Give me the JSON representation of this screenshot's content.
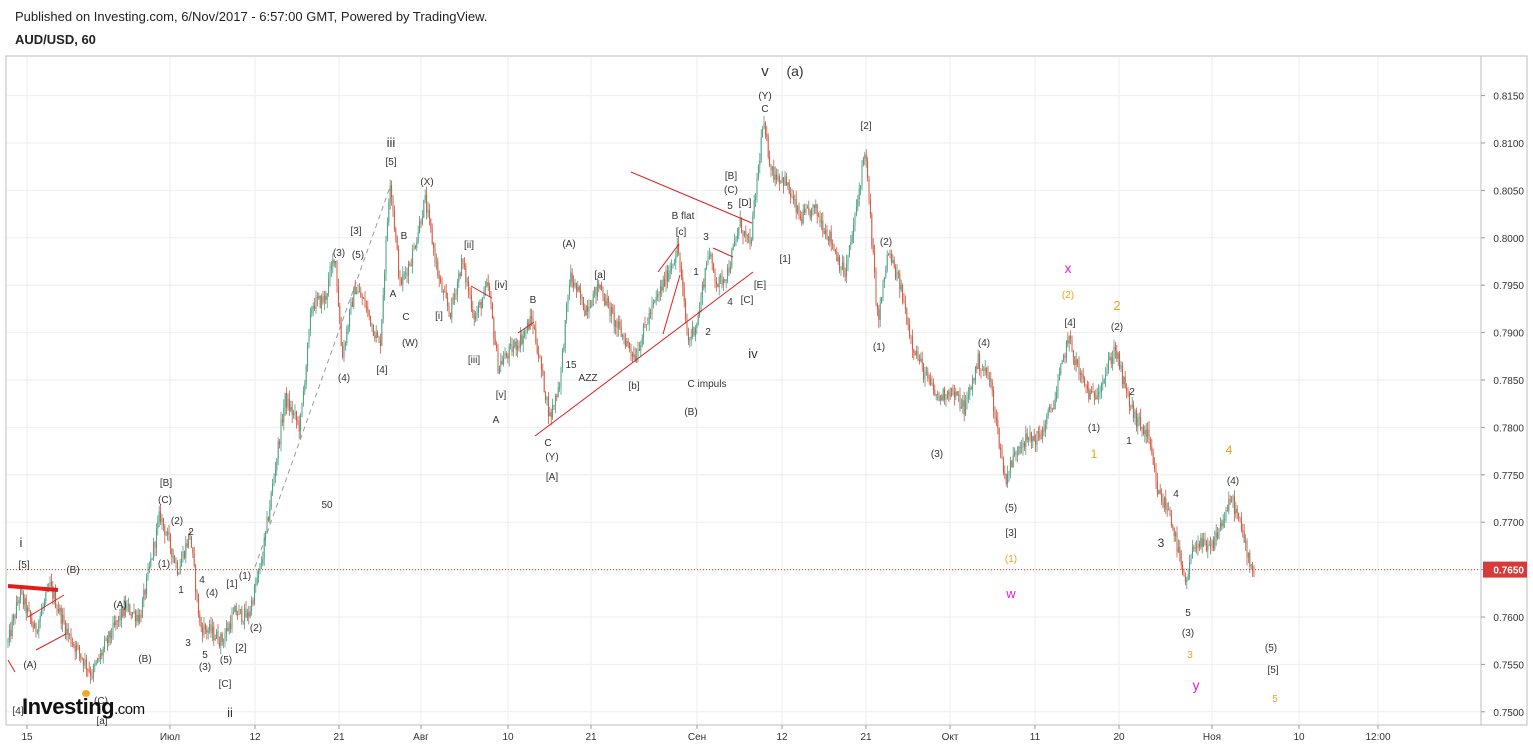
{
  "header": {
    "published": "Published on Investing.com, 6/Nov/2017 - 6:57:00 GMT, Powered by TradingView.",
    "symbol": "AUD/USD, 60"
  },
  "logo": {
    "brand": "Investing",
    "suffix": ".com"
  },
  "colors": {
    "up": "#4a9e83",
    "down": "#d0583f",
    "trendline": "#e31b1b",
    "dashed": "#9a9a9a",
    "current_price": "#d63a3a",
    "orange": "#f0a020",
    "magenta": "#e31be0",
    "grid": "#eeeeee"
  },
  "chart_data": {
    "type": "candlestick",
    "symbol": "AUD/USD",
    "interval": "60",
    "ylim": [
      0.7495,
      0.8195
    ],
    "y_ticks": [
      "0.8150",
      "0.8100",
      "0.8050",
      "0.8000",
      "0.7950",
      "0.7900",
      "0.7850",
      "0.7800",
      "0.7750",
      "0.7700",
      "0.7650",
      "0.7600",
      "0.7550",
      "0.7500"
    ],
    "x_ticks": [
      "15",
      "Июл",
      "12",
      "21",
      "Авг",
      "10",
      "21",
      "Сен",
      "12",
      "21",
      "Окт",
      "11",
      "20",
      "Ноя",
      "10",
      "12:00"
    ],
    "current_price": "0.7650",
    "price_path": [
      [
        0,
        0.7538
      ],
      [
        20,
        0.7625
      ],
      [
        35,
        0.7585
      ],
      [
        50,
        0.7632
      ],
      [
        68,
        0.7582
      ],
      [
        92,
        0.754
      ],
      [
        110,
        0.758
      ],
      [
        125,
        0.761
      ],
      [
        140,
        0.76
      ],
      [
        160,
        0.7708
      ],
      [
        178,
        0.765
      ],
      [
        190,
        0.7688
      ],
      [
        200,
        0.759
      ],
      [
        210,
        0.7585
      ],
      [
        222,
        0.7575
      ],
      [
        235,
        0.7605
      ],
      [
        248,
        0.76
      ],
      [
        262,
        0.766
      ],
      [
        285,
        0.783
      ],
      [
        300,
        0.78
      ],
      [
        312,
        0.793
      ],
      [
        325,
        0.7935
      ],
      [
        335,
        0.7985
      ],
      [
        342,
        0.7875
      ],
      [
        355,
        0.7948
      ],
      [
        365,
        0.793
      ],
      [
        380,
        0.7885
      ],
      [
        390,
        0.8065
      ],
      [
        400,
        0.795
      ],
      [
        412,
        0.798
      ],
      [
        425,
        0.804
      ],
      [
        440,
        0.795
      ],
      [
        450,
        0.792
      ],
      [
        462,
        0.7975
      ],
      [
        475,
        0.7915
      ],
      [
        488,
        0.795
      ],
      [
        498,
        0.7865
      ],
      [
        510,
        0.788
      ],
      [
        522,
        0.7895
      ],
      [
        532,
        0.7915
      ],
      [
        550,
        0.781
      ],
      [
        560,
        0.785
      ],
      [
        570,
        0.796
      ],
      [
        585,
        0.7925
      ],
      [
        600,
        0.795
      ],
      [
        615,
        0.791
      ],
      [
        635,
        0.7875
      ],
      [
        650,
        0.792
      ],
      [
        665,
        0.7955
      ],
      [
        678,
        0.799
      ],
      [
        688,
        0.789
      ],
      [
        698,
        0.7915
      ],
      [
        708,
        0.7985
      ],
      [
        718,
        0.795
      ],
      [
        728,
        0.7965
      ],
      [
        740,
        0.8015
      ],
      [
        750,
        0.799
      ],
      [
        763,
        0.812
      ],
      [
        772,
        0.807
      ],
      [
        785,
        0.806
      ],
      [
        800,
        0.802
      ],
      [
        815,
        0.803
      ],
      [
        830,
        0.8
      ],
      [
        845,
        0.796
      ],
      [
        855,
        0.802
      ],
      [
        865,
        0.8095
      ],
      [
        878,
        0.791
      ],
      [
        888,
        0.7985
      ],
      [
        900,
        0.795
      ],
      [
        912,
        0.789
      ],
      [
        925,
        0.7855
      ],
      [
        938,
        0.783
      ],
      [
        950,
        0.784
      ],
      [
        965,
        0.782
      ],
      [
        978,
        0.787
      ],
      [
        990,
        0.785
      ],
      [
        1005,
        0.7745
      ],
      [
        1020,
        0.7785
      ],
      [
        1040,
        0.779
      ],
      [
        1055,
        0.783
      ],
      [
        1068,
        0.7895
      ],
      [
        1080,
        0.7855
      ],
      [
        1092,
        0.783
      ],
      [
        1105,
        0.7855
      ],
      [
        1115,
        0.7885
      ],
      [
        1125,
        0.784
      ],
      [
        1135,
        0.781
      ],
      [
        1148,
        0.779
      ],
      [
        1158,
        0.773
      ],
      [
        1170,
        0.771
      ],
      [
        1180,
        0.766
      ],
      [
        1185,
        0.763
      ],
      [
        1195,
        0.768
      ],
      [
        1210,
        0.767
      ],
      [
        1222,
        0.77
      ],
      [
        1232,
        0.7725
      ],
      [
        1242,
        0.769
      ],
      [
        1252,
        0.765
      ]
    ],
    "annotations": [
      {
        "text": "v",
        "x": 765,
        "y": 76,
        "size": 15,
        "color": "#333"
      },
      {
        "text": "(a)",
        "x": 795,
        "y": 76,
        "size": 14,
        "color": "#333"
      },
      {
        "text": "(Y)",
        "x": 765,
        "y": 99
      },
      {
        "text": "C",
        "x": 765,
        "y": 112
      },
      {
        "text": "[2]",
        "x": 866,
        "y": 129
      },
      {
        "text": "[B]",
        "x": 731,
        "y": 179
      },
      {
        "text": "(C)",
        "x": 731,
        "y": 193
      },
      {
        "text": "5",
        "x": 730,
        "y": 209
      },
      {
        "text": "[D]",
        "x": 745,
        "y": 206
      },
      {
        "text": "iii",
        "x": 391,
        "y": 147,
        "size": 13
      },
      {
        "text": "[5]",
        "x": 391,
        "y": 165
      },
      {
        "text": "(X)",
        "x": 427,
        "y": 185
      },
      {
        "text": "[3]",
        "x": 356,
        "y": 234
      },
      {
        "text": "B",
        "x": 404,
        "y": 239
      },
      {
        "text": "[ii]",
        "x": 469,
        "y": 248
      },
      {
        "text": "(3)",
        "x": 339,
        "y": 256
      },
      {
        "text": "(5)",
        "x": 358,
        "y": 258
      },
      {
        "text": "(A)",
        "x": 569,
        "y": 247
      },
      {
        "text": "B flat",
        "x": 683,
        "y": 219
      },
      {
        "text": "[c]",
        "x": 681,
        "y": 235
      },
      {
        "text": "3",
        "x": 706,
        "y": 240
      },
      {
        "text": "(2)",
        "x": 886,
        "y": 245
      },
      {
        "text": "[1]",
        "x": 785,
        "y": 262
      },
      {
        "text": "1",
        "x": 696,
        "y": 275
      },
      {
        "text": "[a]",
        "x": 600,
        "y": 278
      },
      {
        "text": "[E]",
        "x": 760,
        "y": 288
      },
      {
        "text": "[iv]",
        "x": 501,
        "y": 288
      },
      {
        "text": "A",
        "x": 393,
        "y": 297
      },
      {
        "text": "B",
        "x": 533,
        "y": 303
      },
      {
        "text": "4",
        "x": 730,
        "y": 305
      },
      {
        "text": "[C]",
        "x": 747,
        "y": 303
      },
      {
        "text": "x",
        "x": 1068,
        "y": 273,
        "size": 14,
        "color": "#e31be0"
      },
      {
        "text": "(2)",
        "x": 1068,
        "y": 298,
        "color": "#f0a020"
      },
      {
        "text": "2",
        "x": 1117,
        "y": 310,
        "size": 13,
        "color": "#f0a020"
      },
      {
        "text": "[4]",
        "x": 1070,
        "y": 326
      },
      {
        "text": "(2)",
        "x": 1117,
        "y": 330
      },
      {
        "text": "C",
        "x": 406,
        "y": 320
      },
      {
        "text": "[i]",
        "x": 439,
        "y": 319
      },
      {
        "text": "2",
        "x": 708,
        "y": 335
      },
      {
        "text": "(W)",
        "x": 410,
        "y": 346
      },
      {
        "text": "(1)",
        "x": 879,
        "y": 350
      },
      {
        "text": "(4)",
        "x": 984,
        "y": 346
      },
      {
        "text": "iv",
        "x": 753,
        "y": 358,
        "size": 13
      },
      {
        "text": "[iii]",
        "x": 474,
        "y": 363
      },
      {
        "text": "15",
        "x": 571,
        "y": 368
      },
      {
        "text": "[4]",
        "x": 382,
        "y": 373
      },
      {
        "text": "(4)",
        "x": 344,
        "y": 381
      },
      {
        "text": "AZZ",
        "x": 588,
        "y": 381
      },
      {
        "text": "[b]",
        "x": 634,
        "y": 389
      },
      {
        "text": "C impuls",
        "x": 707,
        "y": 387
      },
      {
        "text": "2",
        "x": 1132,
        "y": 395
      },
      {
        "text": "[v]",
        "x": 501,
        "y": 398
      },
      {
        "text": "(B)",
        "x": 691,
        "y": 415
      },
      {
        "text": "A",
        "x": 496,
        "y": 423
      },
      {
        "text": "(1)",
        "x": 1094,
        "y": 431
      },
      {
        "text": "C",
        "x": 548,
        "y": 446
      },
      {
        "text": "1",
        "x": 1129,
        "y": 444
      },
      {
        "text": "(3)",
        "x": 937,
        "y": 457
      },
      {
        "text": "(Y)",
        "x": 552,
        "y": 460
      },
      {
        "text": "1",
        "x": 1094,
        "y": 458,
        "size": 12,
        "color": "#f0a020"
      },
      {
        "text": "4",
        "x": 1229,
        "y": 454,
        "size": 12,
        "color": "#f0a020"
      },
      {
        "text": "[A]",
        "x": 552,
        "y": 480
      },
      {
        "text": "(4)",
        "x": 1233,
        "y": 484
      },
      {
        "text": "[B]",
        "x": 166,
        "y": 486
      },
      {
        "text": "4",
        "x": 1176,
        "y": 497
      },
      {
        "text": "(C)",
        "x": 165,
        "y": 503
      },
      {
        "text": "50",
        "x": 327,
        "y": 508
      },
      {
        "text": "(5)",
        "x": 1011,
        "y": 511
      },
      {
        "text": "(2)",
        "x": 177,
        "y": 524
      },
      {
        "text": "2",
        "x": 191,
        "y": 535
      },
      {
        "text": "[3]",
        "x": 1011,
        "y": 536
      },
      {
        "text": "i",
        "x": 21,
        "y": 547,
        "size": 13
      },
      {
        "text": "3",
        "x": 1161,
        "y": 547,
        "size": 12
      },
      {
        "text": "(1)",
        "x": 164,
        "y": 567
      },
      {
        "text": "[5]",
        "x": 24,
        "y": 568
      },
      {
        "text": "(1)",
        "x": 1011,
        "y": 562,
        "color": "#f0a020"
      },
      {
        "text": "(B)",
        "x": 73,
        "y": 573
      },
      {
        "text": "4",
        "x": 202,
        "y": 583
      },
      {
        "text": "[1]",
        "x": 232,
        "y": 587
      },
      {
        "text": "1",
        "x": 181,
        "y": 593
      },
      {
        "text": "(4)",
        "x": 212,
        "y": 596
      },
      {
        "text": "(1)",
        "x": 245,
        "y": 579
      },
      {
        "text": "w",
        "x": 1011,
        "y": 598,
        "size": 13,
        "color": "#e31be0"
      },
      {
        "text": "(A)",
        "x": 120,
        "y": 608
      },
      {
        "text": "5",
        "x": 1188,
        "y": 616
      },
      {
        "text": "(2)",
        "x": 256,
        "y": 631
      },
      {
        "text": "(3)",
        "x": 1188,
        "y": 636
      },
      {
        "text": "3",
        "x": 188,
        "y": 646
      },
      {
        "text": "[2]",
        "x": 241,
        "y": 651
      },
      {
        "text": "(5)",
        "x": 1271,
        "y": 651
      },
      {
        "text": "5",
        "x": 205,
        "y": 658
      },
      {
        "text": "(B)",
        "x": 145,
        "y": 662
      },
      {
        "text": "3",
        "x": 1190,
        "y": 658,
        "color": "#f0a020"
      },
      {
        "text": "(A)",
        "x": 30,
        "y": 668
      },
      {
        "text": "(3)",
        "x": 205,
        "y": 670
      },
      {
        "text": "(5)",
        "x": 226,
        "y": 663
      },
      {
        "text": "[5]",
        "x": 1273,
        "y": 673
      },
      {
        "text": "[C]",
        "x": 225,
        "y": 687
      },
      {
        "text": "y",
        "x": 1196,
        "y": 690,
        "size": 14,
        "color": "#e31be0"
      },
      {
        "text": "5",
        "x": 1275,
        "y": 702,
        "color": "#f0a020"
      },
      {
        "text": "(C)",
        "x": 101,
        "y": 704
      },
      {
        "text": "ii",
        "x": 230,
        "y": 717,
        "size": 13
      },
      {
        "text": "[4]",
        "x": 18,
        "y": 714
      },
      {
        "text": "[a]",
        "x": 102,
        "y": 724
      }
    ]
  }
}
